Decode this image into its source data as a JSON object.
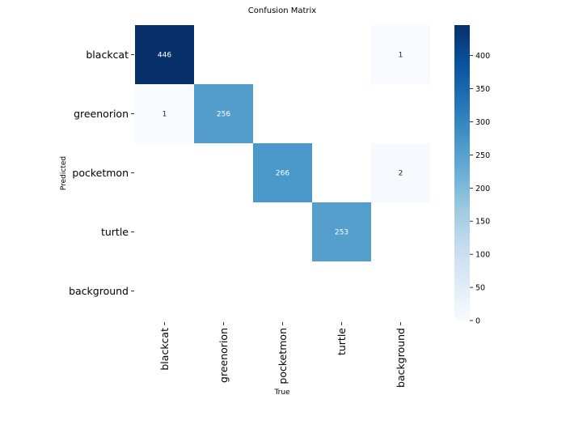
{
  "chart_data": {
    "type": "heatmap",
    "title": "Confusion Matrix",
    "xlabel": "True",
    "ylabel": "Predicted",
    "x_categories": [
      "blackcat",
      "greenorion",
      "pocketmon",
      "turtle",
      "background"
    ],
    "y_categories": [
      "blackcat",
      "greenorion",
      "pocketmon",
      "turtle",
      "background"
    ],
    "matrix": [
      [
        446,
        null,
        null,
        null,
        1
      ],
      [
        1,
        256,
        null,
        null,
        null
      ],
      [
        null,
        null,
        266,
        null,
        2
      ],
      [
        null,
        null,
        null,
        253,
        null
      ],
      [
        null,
        null,
        null,
        null,
        null
      ]
    ],
    "colormap": "Blues",
    "colorbar": {
      "min": 0,
      "max": 446,
      "ticks": [
        0,
        50,
        100,
        150,
        200,
        250,
        300,
        350,
        400
      ]
    }
  }
}
